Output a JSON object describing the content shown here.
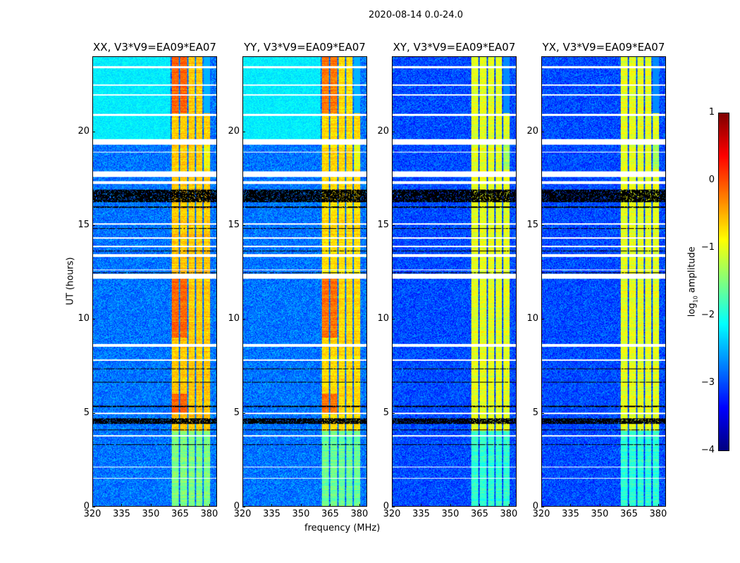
{
  "chart_data": {
    "type": "heatmap",
    "title": "2020-08-14 0.0-24.0",
    "xlabel": "frequency (MHz)",
    "ylabel": "UT (hours)",
    "xlim": [
      320,
      384
    ],
    "ylim": [
      0,
      24
    ],
    "xticks": [
      "320",
      "335",
      "350",
      "365",
      "380"
    ],
    "yticks": [
      "0",
      "5",
      "10",
      "15",
      "20"
    ],
    "panels": [
      {
        "title": "XX, V3*V9=EA09*EA07",
        "pol": "XX",
        "band_level": -0.6,
        "bg_level": -2.8,
        "cyan_top": true
      },
      {
        "title": "YY, V3*V9=EA09*EA07",
        "pol": "YY",
        "band_level": -0.7,
        "bg_level": -2.8,
        "cyan_top": true
      },
      {
        "title": "XY, V3*V9=EA09*EA07",
        "pol": "XY",
        "band_level": -1.0,
        "bg_level": -3.0,
        "cyan_top": false
      },
      {
        "title": "YX, V3*V9=EA09*EA07",
        "pol": "YX",
        "band_level": -1.0,
        "bg_level": -3.0,
        "cyan_top": false
      }
    ],
    "rfi_bands_mhz": [
      [
        361,
        364.6
      ],
      [
        365.2,
        368.8
      ],
      [
        369.6,
        372.8
      ],
      [
        373.6,
        376.6
      ],
      [
        377.4,
        380.6
      ]
    ],
    "flagged_hours": [
      [
        23.4,
        23.5
      ],
      [
        22.45,
        22.55
      ],
      [
        21.95,
        22.0
      ],
      [
        20.85,
        20.95
      ],
      [
        19.3,
        19.6
      ],
      [
        18.9,
        18.95
      ],
      [
        17.6,
        17.9
      ],
      [
        17.2,
        17.35
      ],
      [
        15.05,
        15.1
      ],
      [
        14.3,
        14.35
      ],
      [
        13.85,
        13.9
      ],
      [
        13.3,
        13.45
      ],
      [
        12.6,
        12.65
      ],
      [
        12.15,
        12.4
      ],
      [
        8.5,
        8.65
      ],
      [
        7.75,
        7.85
      ],
      [
        4.9,
        5.0
      ],
      [
        3.7,
        3.8
      ],
      [
        2.05,
        2.1
      ],
      [
        1.45,
        1.5
      ]
    ],
    "zero_hours": [
      [
        16.25,
        16.9
      ],
      [
        15.95,
        16.0
      ],
      [
        14.8,
        14.85
      ],
      [
        13.6,
        13.65
      ],
      [
        12.45,
        12.5
      ],
      [
        7.3,
        7.35
      ],
      [
        6.6,
        6.65
      ],
      [
        5.3,
        5.35
      ],
      [
        4.4,
        4.7
      ],
      [
        4.05,
        4.1
      ],
      [
        3.25,
        3.3
      ]
    ],
    "colorbar": {
      "label_prefix": "log",
      "label_sub": "10",
      "label_suffix": " amplitude",
      "range": [
        -4,
        1
      ],
      "ticks": [
        "−4",
        "−3",
        "−2",
        "−1",
        "0",
        "1"
      ],
      "colormap": "jet"
    }
  }
}
